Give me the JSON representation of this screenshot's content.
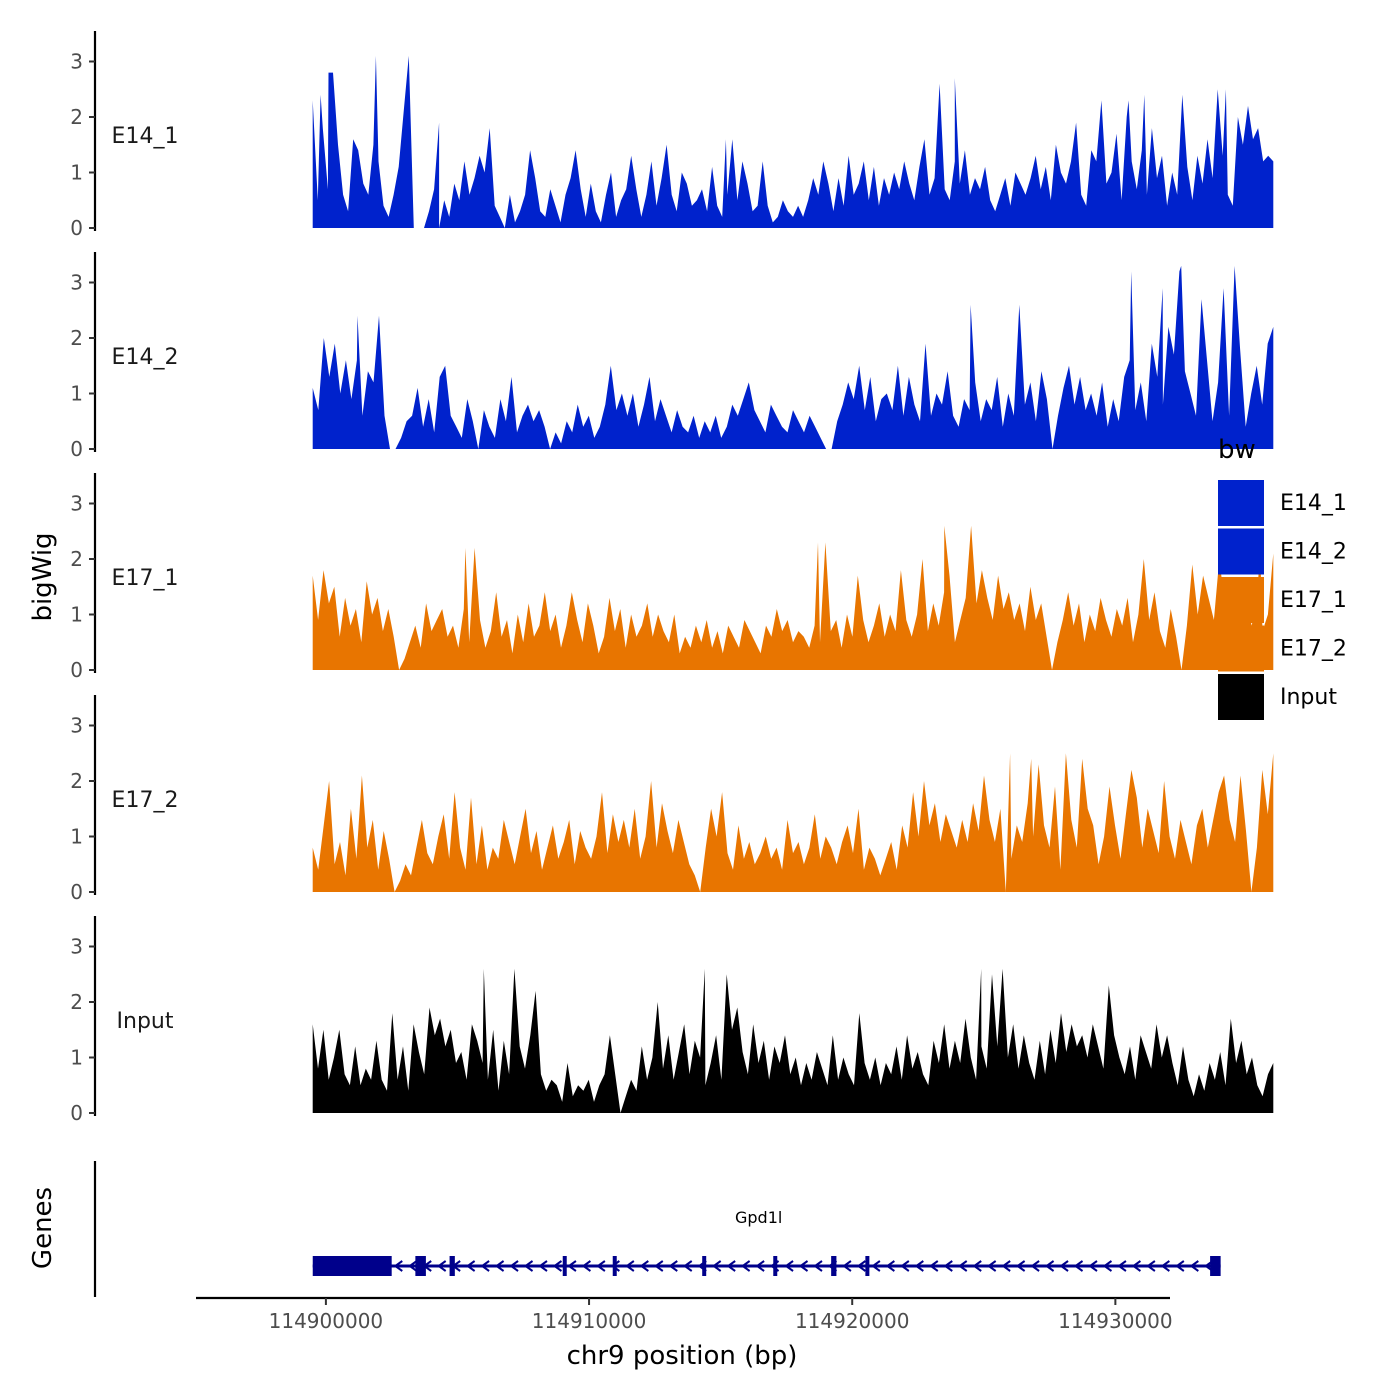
{
  "chart_data": {
    "type": "area",
    "title": "",
    "ylabel": "bigWig",
    "xlabel": "chr9 position (bp)",
    "genes_label": "Genes",
    "gene_name": "Gpd1l",
    "chromosome": "chr9",
    "xlim": [
      114894000,
      114932000
    ],
    "signal_range": [
      114899500,
      114936000
    ],
    "ylim": [
      0,
      3.5
    ],
    "y_ticks": [
      "0",
      "1",
      "2",
      "3"
    ],
    "x_ticks": [
      {
        "value": 114900000,
        "label": "114900000"
      },
      {
        "value": 114910000,
        "label": "114910000"
      },
      {
        "value": 114920000,
        "label": "114920000"
      },
      {
        "value": 114930000,
        "label": "114930000"
      }
    ],
    "legend": {
      "title": "bw",
      "entries": [
        {
          "name": "E14_1",
          "color": "#0022cc"
        },
        {
          "name": "E14_2",
          "color": "#0022cc"
        },
        {
          "name": "E17_1",
          "color": "#e87500"
        },
        {
          "name": "E17_2",
          "color": "#e87500"
        },
        {
          "name": "Input",
          "color": "#000000"
        }
      ]
    },
    "series": [
      {
        "name": "E14_1",
        "color": "#0022cc",
        "values": [
          2.3,
          0.5,
          1.8,
          0.7,
          2.8,
          1.5,
          0.6,
          0.3,
          1.6,
          1.4,
          0.8,
          0.6,
          1.5,
          1.2,
          0.4,
          0.2,
          0.6,
          1.1,
          2.1,
          3.1,
          0.0,
          0,
          0,
          0.3,
          0.7,
          0,
          0.5,
          0.2,
          0.8,
          0.5,
          1.2,
          0.6,
          0.9,
          1.3,
          1.0,
          1.8,
          0.4,
          0.2,
          0.0,
          0.6,
          0.1,
          0.3,
          0.6,
          1.4,
          0.9,
          0.3,
          0.2,
          0.7,
          0.4,
          0.1,
          0.6,
          0.9,
          1.4,
          0.7,
          0.2,
          0.8,
          0.3,
          0.1,
          0.6,
          1.0,
          0.2,
          0.5,
          0.7,
          1.3,
          0.7,
          0.2,
          0.6,
          1.2,
          0.4,
          0.9,
          1.5,
          0.6,
          0.3,
          1.0,
          0.8,
          0.4,
          0.5,
          0.7,
          0.3,
          1.1,
          0.4,
          0.2,
          0.6,
          1.6,
          0.5,
          1.2,
          0.8,
          0.3,
          0.4,
          1.2,
          0.4,
          0.1,
          0.2,
          0.5,
          0.3,
          0.2,
          0.4,
          0.2,
          0.5,
          0.9,
          0.6,
          1.2,
          0.8,
          0.3,
          0.9,
          0.4,
          1.3,
          0.6,
          0.8,
          1.2,
          0.5,
          1.1,
          0.4,
          0.9,
          0.6,
          1.0,
          0.7,
          1.2,
          0.8,
          0.5,
          1.1,
          1.6,
          0.6,
          0.9,
          2.6,
          0.7,
          0.5,
          1.2,
          0.8,
          1.4,
          0.6,
          0.9,
          0.7,
          1.1,
          0.5,
          0.3,
          0.6,
          0.9,
          0.4,
          1.0,
          0.8,
          0.6,
          0.9,
          1.3,
          0.7,
          1.1,
          0.5,
          1.5,
          1.0,
          0.8,
          1.2,
          1.9,
          0.6,
          0.4,
          1.4,
          1.2,
          2.3,
          0.8,
          1.0,
          1.7,
          0.5,
          2.0,
          1.2,
          0.7,
          1.4,
          0.6,
          1.8,
          0.9,
          1.3,
          0.4,
          1.0,
          0.6,
          2.4,
          1.1,
          0.5,
          1.3,
          0.8,
          1.6,
          0.9,
          2.5,
          1.3,
          0.6,
          0.4,
          2.0,
          1.5,
          2.2,
          1.6,
          1.8,
          1.2,
          1.3,
          1.2
        ],
        "peaks": [
          [
            114899800,
            2.4
          ],
          [
            114900100,
            2.8
          ],
          [
            114901900,
            3.1
          ],
          [
            114904300,
            1.9
          ],
          [
            114915200,
            1.6
          ],
          [
            114923900,
            2.7
          ],
          [
            114930500,
            2.3
          ],
          [
            114931100,
            2.4
          ],
          [
            114934200,
            2.5
          ]
        ]
      },
      {
        "name": "E14_2",
        "color": "#0022cc",
        "values": [
          1.1,
          0.7,
          2.0,
          1.3,
          1.9,
          1.0,
          1.6,
          0.9,
          1.6,
          0.6,
          1.4,
          1.2,
          2.4,
          0.6,
          0.0,
          0,
          0.2,
          0.5,
          0.6,
          1.1,
          0.4,
          0.9,
          0.3,
          1.3,
          1.5,
          0.6,
          0.4,
          0.2,
          0.9,
          0.5,
          0.0,
          0.7,
          0.4,
          0.2,
          0.9,
          0.5,
          1.3,
          0.3,
          0.6,
          0.8,
          0.5,
          0.7,
          0.4,
          0,
          0.3,
          0.1,
          0.5,
          0.3,
          0.8,
          0.4,
          0.6,
          0.2,
          0.4,
          0.8,
          1.5,
          0.7,
          1.0,
          0.6,
          1.0,
          0.4,
          0.8,
          1.3,
          0.5,
          0.9,
          0.6,
          0.3,
          0.7,
          0.4,
          0.3,
          0.6,
          0.2,
          0.5,
          0.3,
          0.6,
          0.2,
          0.4,
          0.8,
          0.6,
          0.9,
          1.2,
          0.7,
          0.5,
          0.3,
          0.8,
          0.6,
          0.4,
          0.3,
          0.7,
          0.5,
          0.3,
          0.6,
          0.4,
          0.2,
          0,
          0.0,
          0.5,
          0.8,
          1.2,
          0.9,
          1.5,
          0.7,
          1.3,
          0.5,
          0.9,
          1.0,
          0.7,
          1.5,
          0.6,
          1.3,
          0.8,
          0.5,
          1.9,
          0.6,
          1.0,
          0.8,
          1.4,
          0.6,
          0.4,
          0.9,
          0.7,
          1.2,
          0.5,
          0.9,
          0.7,
          1.3,
          0.4,
          1.0,
          0.6,
          2.6,
          0.8,
          1.2,
          0.5,
          1.4,
          0.9,
          0.0,
          0.6,
          1.1,
          1.5,
          0.8,
          1.3,
          0.7,
          1.0,
          0.6,
          1.2,
          0.4,
          0.9,
          0.5,
          1.3,
          1.6,
          0.7,
          1.2,
          0.5,
          1.9,
          1.3,
          0.8,
          2.2,
          1.7,
          3.2,
          1.4,
          1.0,
          0.6,
          2.7,
          1.6,
          0.5,
          1.2,
          2.9,
          0.6,
          3.3,
          1.8,
          0.4,
          1.0,
          1.5,
          0.8,
          1.9,
          2.2
        ],
        "peaks": [
          [
            114901200,
            2.4
          ],
          [
            114924500,
            2.6
          ],
          [
            114930600,
            3.2
          ],
          [
            114931800,
            2.9
          ],
          [
            114932500,
            3.3
          ]
        ]
      },
      {
        "name": "E17_1",
        "color": "#e87500",
        "values": [
          1.7,
          0.9,
          1.8,
          1.2,
          1.5,
          0.6,
          1.3,
          0.8,
          1.1,
          0.5,
          1.6,
          1.0,
          1.3,
          0.7,
          1.1,
          0.6,
          0.0,
          0.2,
          0.5,
          0.8,
          0.4,
          1.2,
          0.7,
          0.9,
          1.1,
          0.6,
          0.8,
          0.4,
          1.1,
          0.5,
          2.2,
          0.9,
          0.4,
          0.7,
          1.4,
          0.6,
          0.9,
          0.3,
          1.0,
          0.5,
          1.2,
          0.6,
          0.8,
          1.4,
          0.7,
          1.0,
          0.4,
          0.8,
          1.4,
          0.9,
          0.5,
          1.2,
          0.8,
          0.3,
          0.6,
          1.3,
          0.7,
          1.1,
          0.4,
          1.0,
          0.6,
          0.8,
          1.2,
          0.6,
          1.0,
          0.7,
          0.5,
          1.0,
          0.3,
          0.6,
          0.4,
          0.8,
          0.5,
          0.9,
          0.4,
          0.7,
          0.3,
          0.8,
          0.6,
          0.4,
          0.9,
          0.7,
          0.5,
          0.3,
          0.8,
          0.6,
          1.1,
          0.7,
          0.9,
          0.5,
          0.7,
          0.6,
          0.4,
          0.8,
          0.5,
          2.3,
          0.7,
          0.9,
          0.4,
          1.0,
          0.6,
          1.7,
          0.9,
          0.5,
          0.8,
          1.2,
          0.6,
          1.0,
          0.7,
          1.8,
          0.9,
          0.6,
          1.0,
          2.0,
          0.7,
          1.2,
          0.8,
          1.4,
          1.7,
          0.5,
          0.9,
          1.3,
          2.6,
          1.2,
          1.8,
          1.3,
          0.9,
          1.7,
          1.1,
          1.4,
          0.9,
          1.2,
          0.7,
          1.5,
          0.9,
          1.2,
          0.6,
          0.0,
          0.5,
          0.9,
          1.4,
          0.8,
          1.2,
          0.5,
          1.0,
          0.7,
          1.3,
          0.9,
          0.6,
          1.1,
          0.8,
          1.3,
          0.5,
          1.0,
          2.0,
          0.9,
          1.4,
          0.7,
          0.4,
          1.1,
          0.6,
          0.0,
          0.8,
          1.9,
          1.0,
          1.7,
          1.3,
          0.9,
          2.0,
          1.2,
          1.4,
          1.0,
          1.6,
          1.2,
          0.8,
          1.3,
          0.7,
          1.0,
          2.1
        ],
        "peaks": [
          [
            114905300,
            2.2
          ],
          [
            114918700,
            2.3
          ],
          [
            114923500,
            2.6
          ],
          [
            114935500,
            2.2
          ]
        ]
      },
      {
        "name": "E17_2",
        "color": "#e87500",
        "values": [
          0.8,
          0.4,
          1.2,
          2.0,
          0.5,
          0.9,
          0.3,
          1.5,
          0.6,
          2.1,
          0.8,
          1.3,
          0.4,
          1.1,
          0.6,
          0,
          0.2,
          0.5,
          0.3,
          0.8,
          1.3,
          0.7,
          0.5,
          1.0,
          1.4,
          0.6,
          1.8,
          0.8,
          0.4,
          1.7,
          0.5,
          1.2,
          0.4,
          0.8,
          0.6,
          1.3,
          0.9,
          0.5,
          1.0,
          1.5,
          0.7,
          1.1,
          0.4,
          0.8,
          1.2,
          0.6,
          0.9,
          1.3,
          0.5,
          1.1,
          0.8,
          0.6,
          1.0,
          1.8,
          0.7,
          1.4,
          0.9,
          1.3,
          0.8,
          1.5,
          0.6,
          1.0,
          2.0,
          0.8,
          1.6,
          1.1,
          0.7,
          1.3,
          0.9,
          0.5,
          0.3,
          0.0,
          0.8,
          1.5,
          1.0,
          1.8,
          0.7,
          0.4,
          1.2,
          0.6,
          0.9,
          0.5,
          0.7,
          1.0,
          0.6,
          0.8,
          0.4,
          1.3,
          0.7,
          0.9,
          0.5,
          0.8,
          1.4,
          0.6,
          1.0,
          0.8,
          0.5,
          0.9,
          1.2,
          0.7,
          1.5,
          0.4,
          0.8,
          0.6,
          0.3,
          0.6,
          0.9,
          0.4,
          1.2,
          0.8,
          1.8,
          1.0,
          2.0,
          1.2,
          1.6,
          0.9,
          1.4,
          1.1,
          0.8,
          1.3,
          0.9,
          1.6,
          1.1,
          2.1,
          1.3,
          0.9,
          1.5,
          0.0,
          0.6,
          1.2,
          0.9,
          1.6,
          1.0,
          2.3,
          1.2,
          0.8,
          1.9,
          0.4,
          2.5,
          1.3,
          0.8,
          2.4,
          1.5,
          1.2,
          0.5,
          1.0,
          1.9,
          1.2,
          0.6,
          1.4,
          2.2,
          1.7,
          0.8,
          1.5,
          1.1,
          0.7,
          2.0,
          1.0,
          0.6,
          1.3,
          0.9,
          0.5,
          1.2,
          1.5,
          0.8,
          1.3,
          1.8,
          2.1,
          1.3,
          0.9,
          2.1,
          1.1,
          0.0,
          0.8,
          2.2,
          1.4,
          2.5
        ],
        "peaks": [
          [
            114926000,
            2.5
          ],
          [
            114926800,
            2.4
          ],
          [
            114936000,
            2.5
          ]
        ]
      },
      {
        "name": "Input",
        "color": "#000000",
        "values": [
          1.6,
          0.8,
          1.5,
          0.6,
          1.0,
          1.5,
          0.7,
          0.5,
          1.2,
          0.5,
          0.8,
          0.6,
          1.3,
          0.6,
          0.4,
          1.8,
          0.6,
          1.2,
          0.4,
          1.6,
          1.1,
          0.7,
          1.9,
          1.4,
          1.7,
          1.2,
          1.5,
          0.9,
          1.1,
          0.6,
          1.6,
          1.3,
          0.9,
          0.6,
          1.5,
          0.4,
          1.3,
          0.7,
          2.6,
          1.2,
          0.8,
          1.4,
          2.2,
          0.7,
          0.4,
          0.6,
          0.5,
          0.2,
          0.9,
          0.3,
          0.5,
          0.4,
          0.6,
          0.2,
          0.5,
          0.7,
          1.4,
          0.7,
          0.0,
          0.3,
          0.6,
          0.4,
          1.2,
          0.6,
          1.0,
          2.0,
          0.8,
          1.4,
          0.6,
          1.1,
          1.6,
          0.7,
          1.3,
          1.0,
          0.5,
          0.9,
          1.4,
          0.6,
          2.5,
          1.5,
          1.9,
          1.1,
          0.7,
          1.6,
          0.9,
          1.3,
          0.6,
          1.2,
          0.9,
          1.4,
          0.7,
          1.0,
          0.5,
          0.9,
          0.6,
          1.1,
          0.8,
          0.5,
          1.4,
          0.6,
          1.0,
          0.7,
          0.5,
          1.8,
          0.9,
          0.6,
          1.0,
          0.5,
          0.9,
          0.7,
          1.2,
          0.6,
          1.4,
          0.8,
          1.1,
          0.7,
          0.5,
          1.3,
          0.9,
          1.6,
          0.8,
          1.3,
          0.9,
          1.7,
          1.0,
          0.6,
          1.2,
          0.8,
          2.5,
          1.2,
          2.6,
          1.0,
          1.6,
          0.8,
          1.4,
          0.9,
          0.6,
          1.3,
          0.7,
          1.5,
          0.9,
          1.8,
          1.1,
          1.6,
          1.2,
          1.4,
          1.0,
          1.6,
          1.2,
          0.8,
          2.3,
          1.4,
          1.0,
          0.7,
          1.2,
          0.6,
          1.4,
          1.1,
          0.8,
          1.6,
          1.0,
          1.4,
          0.9,
          0.5,
          1.2,
          0.6,
          0.3,
          0.7,
          0.4,
          0.9,
          0.6,
          1.1,
          0.5,
          1.7,
          0.9,
          1.3,
          0.7,
          1.0,
          0.5,
          0.3,
          0.7,
          0.9
        ],
        "peaks": [
          [
            114906000,
            2.6
          ],
          [
            114914400,
            2.6
          ],
          [
            114924900,
            2.6
          ]
        ]
      }
    ],
    "gene_model": {
      "strand": "-",
      "start": 114899500,
      "end": 114934000,
      "utr_blocks": [
        [
          114899500,
          114902500
        ]
      ],
      "exons": [
        [
          114903400,
          114903800
        ],
        [
          114904700,
          114904900
        ],
        [
          114909000,
          114909100
        ],
        [
          114910900,
          114911000
        ],
        [
          114914300,
          114914400
        ],
        [
          114917000,
          114917100
        ],
        [
          114919200,
          114919400
        ],
        [
          114920500,
          114920600
        ],
        [
          114933600,
          114934000
        ]
      ]
    }
  }
}
